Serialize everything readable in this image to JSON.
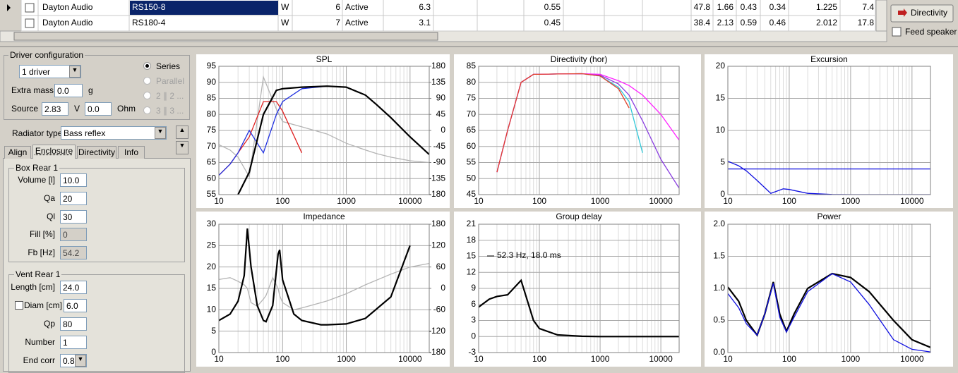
{
  "table": {
    "rows": [
      [
        "Dayton Audio",
        "RS150-8",
        "W",
        "6",
        "Active",
        "6.3",
        "0.55",
        "47.8",
        "1.66",
        "0.43",
        "0.34",
        "1.225",
        "7.4"
      ],
      [
        "Dayton Audio",
        "RS180-4",
        "W",
        "7",
        "Active",
        "3.1",
        "0.45",
        "38.4",
        "2.13",
        "0.59",
        "0.46",
        "2.012",
        "17.8"
      ]
    ]
  },
  "buttons": {
    "directivity": "Directivity",
    "feed_speaker": "Feed speaker"
  },
  "driver_configuration": {
    "title": "Driver configuration",
    "count": "1 driver",
    "extra_mass_label": "Extra mass",
    "extra_mass": "0.0",
    "extra_mass_unit": "g",
    "source_label": "Source",
    "source_voltage": "2.83",
    "voltage_unit": "V",
    "source_resistance": "0.0",
    "resistance_unit": "Ohm",
    "connections": [
      "Series",
      "Parallel",
      "2 ∥ 2 ...",
      "3 ∥ 3 ..."
    ]
  },
  "radiator": {
    "label": "Radiator type",
    "value": "Bass reflex"
  },
  "tabs": [
    "Align",
    "Enclosure",
    "Directivity",
    "Info"
  ],
  "box": {
    "title": "Box Rear 1",
    "fields": [
      {
        "label": "Volume [l]",
        "value": "10.0"
      },
      {
        "label": "Qa",
        "value": "20"
      },
      {
        "label": "Ql",
        "value": "30"
      },
      {
        "label": "Fill [%]",
        "value": "0"
      },
      {
        "label": "Fb [Hz]",
        "value": "54.2"
      }
    ]
  },
  "vent": {
    "title": "Vent Rear 1",
    "fields": [
      {
        "label": "Length [cm]",
        "value": "24.0"
      },
      {
        "label": "Diam [cm]",
        "value": "6.0"
      },
      {
        "label": "Qp",
        "value": "80"
      },
      {
        "label": "Number",
        "value": "1"
      },
      {
        "label": "End corr",
        "value": "0.80"
      }
    ]
  },
  "chart_data": [
    {
      "type": "line",
      "title": "SPL",
      "xscale": "log",
      "grid": true,
      "x": [
        10,
        15,
        20,
        30,
        50,
        80,
        100,
        200,
        500,
        1000,
        2000,
        3000,
        5000,
        10000,
        20000
      ],
      "xlim": [
        10,
        20000
      ],
      "xticks": [
        10,
        100,
        1000,
        10000
      ],
      "ylim": [
        55,
        95
      ],
      "yticks": [
        55,
        60,
        65,
        70,
        75,
        80,
        85,
        90,
        95
      ],
      "y2lim": [
        -180,
        180
      ],
      "y2ticks": [
        -180,
        -135,
        -90,
        -45,
        0,
        45,
        90,
        135,
        180
      ],
      "series": [
        {
          "color": "#b4b4b4",
          "axis": "y2",
          "values": [
            -40,
            -55,
            -75,
            -130,
            150,
            60,
            25,
            10,
            -10,
            -36,
            -55,
            -65,
            -75,
            -85,
            -90
          ]
        },
        {
          "color": "#e02020",
          "values": [
            61,
            64.5,
            68,
            73,
            84,
            84,
            81,
            68,
            null,
            null,
            null,
            null,
            null,
            null,
            null
          ]
        },
        {
          "color": "#2030e0",
          "values": [
            61,
            64.5,
            68,
            75,
            68,
            80,
            84,
            88,
            88.8,
            null,
            null,
            null,
            null,
            null,
            null
          ]
        },
        {
          "color": "#000000",
          "values": [
            null,
            null,
            55,
            62,
            80,
            87.5,
            88,
            88.5,
            88.8,
            88.5,
            86,
            83,
            79,
            73,
            67.5
          ]
        }
      ]
    },
    {
      "type": "line",
      "title": "Directivity (hor)",
      "xscale": "log",
      "grid": true,
      "x": [
        10,
        15,
        20,
        30,
        50,
        80,
        100,
        200,
        500,
        1000,
        2000,
        3000,
        5000,
        10000,
        20000
      ],
      "xlim": [
        10,
        20000
      ],
      "xticks": [
        10,
        100,
        1000,
        10000
      ],
      "ylim": [
        45,
        85
      ],
      "yticks": [
        45,
        50,
        55,
        60,
        65,
        70,
        75,
        80,
        85
      ],
      "series": [
        {
          "color": "#30c8d8",
          "values": [
            null,
            null,
            52,
            65,
            80,
            82.5,
            82.5,
            82.6,
            82.7,
            82,
            78.5,
            74,
            58,
            null,
            null
          ]
        },
        {
          "color": "#8a3ee0",
          "values": [
            null,
            null,
            52,
            65,
            80,
            82.5,
            82.5,
            82.6,
            82.7,
            82.2,
            79.5,
            76,
            68,
            56,
            47
          ]
        },
        {
          "color": "#ff20ff",
          "values": [
            null,
            null,
            52,
            65,
            80,
            82.5,
            82.5,
            82.6,
            82.7,
            82.5,
            80.5,
            79,
            76,
            70,
            62
          ]
        },
        {
          "color": "#e0402a",
          "values": [
            null,
            null,
            52,
            65,
            80,
            82.5,
            82.5,
            82.6,
            82.7,
            82,
            78,
            72,
            null,
            null,
            null
          ]
        }
      ]
    },
    {
      "type": "line",
      "title": "Excursion",
      "xscale": "log",
      "grid": true,
      "x": [
        10,
        15,
        20,
        30,
        50,
        80,
        100,
        200,
        500,
        1000,
        2000,
        3000,
        5000,
        10000,
        20000
      ],
      "xlim": [
        10,
        20000
      ],
      "xticks": [
        10,
        100,
        1000,
        10000
      ],
      "ylim": [
        0,
        20
      ],
      "yticks": [
        0,
        5,
        10,
        15,
        20
      ],
      "series": [
        {
          "color": "#1010e0",
          "values": [
            4,
            4,
            4,
            4,
            4,
            4,
            4,
            4,
            4,
            4,
            4,
            4,
            4,
            4,
            4
          ]
        },
        {
          "color": "#1010e0",
          "values": [
            5.2,
            4.5,
            3.7,
            2.2,
            0.2,
            0.9,
            0.8,
            0.2,
            0.02,
            0,
            0,
            0,
            0,
            0,
            0
          ]
        }
      ]
    },
    {
      "type": "line",
      "title": "Impedance",
      "xscale": "log",
      "grid": true,
      "x": [
        10,
        15,
        20,
        25,
        28,
        32,
        40,
        50,
        55,
        70,
        85,
        90,
        100,
        150,
        200,
        400,
        500,
        1000,
        2000,
        5000,
        10000,
        20000
      ],
      "xlim": [
        10,
        20000
      ],
      "xticks": [
        10,
        100,
        1000,
        10000
      ],
      "ylim": [
        0,
        30
      ],
      "yticks": [
        0,
        5,
        10,
        15,
        20,
        25,
        30
      ],
      "y2lim": [
        -180,
        180
      ],
      "y2ticks": [
        -180,
        -120,
        -60,
        0,
        60,
        120,
        180
      ],
      "series": [
        {
          "color": "#b4b4b4",
          "axis": "y2",
          "values": [
            25,
            30,
            20,
            10,
            0,
            -40,
            -50,
            -30,
            -20,
            30,
            0,
            -20,
            -40,
            -60,
            -55,
            -40,
            -35,
            -15,
            10,
            40,
            60,
            70
          ]
        },
        {
          "color": "#000000",
          "values": [
            7.5,
            9,
            12,
            18,
            29,
            20,
            11,
            7.5,
            7.2,
            11,
            23,
            24,
            17,
            9,
            7.5,
            6.5,
            6.5,
            6.7,
            8,
            13,
            25,
            null
          ]
        }
      ]
    },
    {
      "type": "line",
      "title": "Group delay",
      "xscale": "log",
      "grid": true,
      "annotation": "52.3 Hz, 18.0 ms",
      "x": [
        10,
        15,
        20,
        30,
        50,
        80,
        100,
        200,
        500,
        1000,
        2000,
        3000,
        5000,
        10000,
        20000
      ],
      "xlim": [
        10,
        20000
      ],
      "xticks": [
        10,
        100,
        1000,
        10000
      ],
      "ylim": [
        -3,
        21
      ],
      "yticks": [
        -3,
        0,
        3,
        6,
        9,
        12,
        15,
        18,
        21
      ],
      "series": [
        {
          "color": "#000000",
          "values": [
            5.5,
            7,
            7.5,
            7.8,
            10.5,
            3,
            1.5,
            0.3,
            0.05,
            0,
            0,
            0,
            0,
            0,
            0
          ]
        }
      ]
    },
    {
      "type": "line",
      "title": "Power",
      "xscale": "log",
      "grid": true,
      "x": [
        10,
        15,
        20,
        30,
        40,
        55,
        70,
        90,
        120,
        200,
        500,
        1000,
        2000,
        5000,
        10000,
        20000
      ],
      "xlim": [
        10,
        20000
      ],
      "xticks": [
        10,
        100,
        1000,
        10000
      ],
      "ylim": [
        0,
        2
      ],
      "yticks": [
        {
          "value": 0,
          "label": "0.0"
        },
        0.5,
        {
          "value": 1,
          "label": "1.0"
        },
        1.5,
        {
          "value": 2,
          "label": "2.0"
        }
      ],
      "series": [
        {
          "color": "#000000",
          "values": [
            1.02,
            0.8,
            0.5,
            0.27,
            0.6,
            1.1,
            0.6,
            0.33,
            0.6,
            1.0,
            1.23,
            1.17,
            0.95,
            0.5,
            0.2,
            0.08
          ]
        },
        {
          "color": "#1010e0",
          "values": [
            0.92,
            0.7,
            0.45,
            0.27,
            0.6,
            1.08,
            0.55,
            0.32,
            0.55,
            0.95,
            1.23,
            1.1,
            0.75,
            0.2,
            0.05,
            0.01
          ]
        }
      ]
    }
  ]
}
